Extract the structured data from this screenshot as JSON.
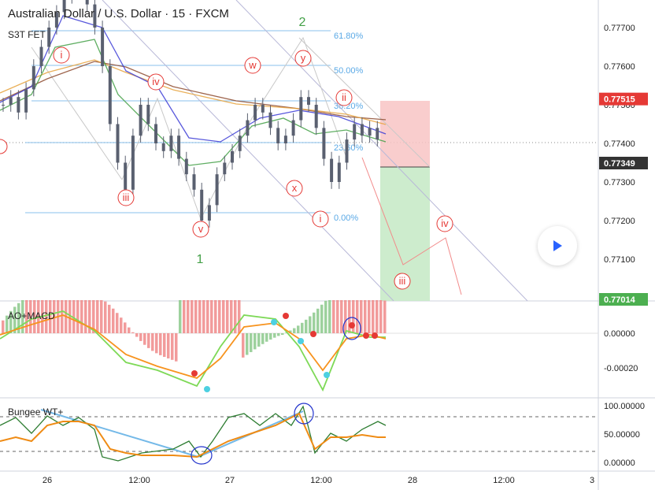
{
  "title": "Australian Dollar / U.S. Dollar · 15 · FXCM",
  "indicator_s3t": "S3T FET",
  "indicator_ao": "AO+MACD",
  "indicator_bungee": "Bungee WT+",
  "colors": {
    "up": "#26a69a",
    "down": "#ef5350",
    "wave": "#e53935",
    "major_wave": "#43a047",
    "fib": "#5aa9e6",
    "stop_zone": "#f8c4c4",
    "target_zone": "#c8eac8",
    "play": "#2962ff"
  },
  "icons": {
    "play": "play-icon"
  },
  "chart_data": [
    {
      "type": "line",
      "name": "price",
      "y_ticks": [
        "0.77700",
        "0.77600",
        "0.77500",
        "0.77400",
        "0.77300",
        "0.77200",
        "0.77100"
      ],
      "ylim": [
        0.77014,
        0.7777
      ],
      "price_labels": [
        {
          "value": "0.77515",
          "kind": "stop"
        },
        {
          "value": "0.77349",
          "kind": "last"
        },
        {
          "value": "0.77014",
          "kind": "target"
        }
      ],
      "x_ticks": [
        "26",
        "12:00",
        "27",
        "12:00",
        "28",
        "12:00",
        "3"
      ],
      "fib_levels": [
        "61.80%",
        "50.00%",
        "38.20%",
        "23.60%",
        "0.00%"
      ],
      "wave_labels": [
        "i",
        "iii",
        "iv",
        "v",
        "w",
        "x",
        "y",
        "i",
        "ii",
        "iii",
        "iv"
      ],
      "major_waves": [
        "1",
        "2"
      ],
      "close_values": [
        0.775,
        0.7752,
        0.7748,
        0.7754,
        0.776,
        0.7765,
        0.777,
        0.7774,
        0.7778,
        0.7782,
        0.778,
        0.7776,
        0.777,
        0.776,
        0.7745,
        0.7735,
        0.7728,
        0.7742,
        0.775,
        0.7745,
        0.774,
        0.7738,
        0.7742,
        0.7736,
        0.7732,
        0.7728,
        0.772,
        0.7724,
        0.7732,
        0.7735,
        0.7738,
        0.7742,
        0.7746,
        0.775,
        0.7748,
        0.7744,
        0.774,
        0.7742,
        0.7746,
        0.7752,
        0.775,
        0.7744,
        0.7736,
        0.773,
        0.7735,
        0.7741,
        0.7745,
        0.7742,
        0.7744,
        0.7741
      ]
    },
    {
      "type": "bar",
      "name": "AO+MACD",
      "y_ticks": [
        "0.00000",
        "-0.00020"
      ]
    },
    {
      "type": "line",
      "name": "Bungee WT+",
      "y_ticks": [
        "100.00000",
        "50.00000",
        "0.00000"
      ],
      "ylim": [
        0,
        100
      ]
    }
  ]
}
